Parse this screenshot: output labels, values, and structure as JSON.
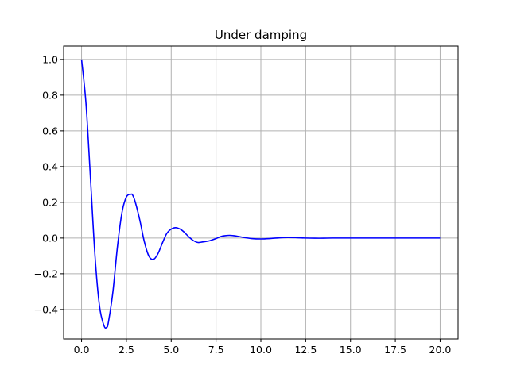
{
  "chart_data": {
    "type": "line",
    "title": "Under damping",
    "xlabel": "",
    "ylabel": "",
    "xlim": [
      -1.0,
      21.0
    ],
    "ylim": [
      -0.565,
      1.075
    ],
    "grid": true,
    "x_ticks": [
      0.0,
      2.5,
      5.0,
      7.5,
      10.0,
      12.5,
      15.0,
      17.5,
      20.0
    ],
    "x_tick_labels": [
      "0.0",
      "2.5",
      "5.0",
      "7.5",
      "10.0",
      "12.5",
      "15.0",
      "17.5",
      "20.0"
    ],
    "y_ticks": [
      -0.4,
      -0.2,
      0.0,
      0.2,
      0.4,
      0.6,
      0.8,
      1.0
    ],
    "y_tick_labels": [
      "−0.4",
      "−0.2",
      "0.0",
      "0.2",
      "0.4",
      "0.6",
      "0.8",
      "1.0"
    ],
    "series": [
      {
        "color": "#0000ff",
        "x": [
          0.0,
          0.25,
          0.5,
          0.75,
          1.0,
          1.25,
          1.4,
          1.5,
          1.75,
          2.0,
          2.25,
          2.5,
          2.75,
          2.85,
          3.0,
          3.25,
          3.5,
          3.75,
          4.0,
          4.25,
          4.5,
          4.75,
          5.0,
          5.25,
          5.5,
          5.7,
          6.0,
          6.25,
          6.5,
          6.75,
          7.0,
          7.15,
          7.5,
          7.75,
          8.0,
          8.25,
          8.5,
          8.75,
          9.0,
          9.5,
          10.0,
          10.5,
          11.0,
          11.5,
          12.0,
          12.5,
          13.0,
          13.5,
          14.0,
          15.0,
          16.0,
          17.0,
          18.0,
          19.0,
          20.0
        ],
        "y": [
          1.0,
          0.75,
          0.33,
          -0.1,
          -0.38,
          -0.49,
          -0.5,
          -0.47,
          -0.3,
          -0.05,
          0.14,
          0.23,
          0.245,
          0.24,
          0.2,
          0.1,
          -0.02,
          -0.1,
          -0.12,
          -0.09,
          -0.03,
          0.025,
          0.05,
          0.058,
          0.05,
          0.035,
          0.005,
          -0.015,
          -0.025,
          -0.022,
          -0.018,
          -0.015,
          -0.003,
          0.008,
          0.013,
          0.015,
          0.013,
          0.009,
          0.004,
          -0.003,
          -0.005,
          -0.003,
          0.001,
          0.003,
          0.002,
          0.0,
          -0.001,
          -0.001,
          0.0,
          0.0,
          0.0,
          0.0,
          0.0,
          0.0,
          0.0
        ]
      }
    ]
  }
}
